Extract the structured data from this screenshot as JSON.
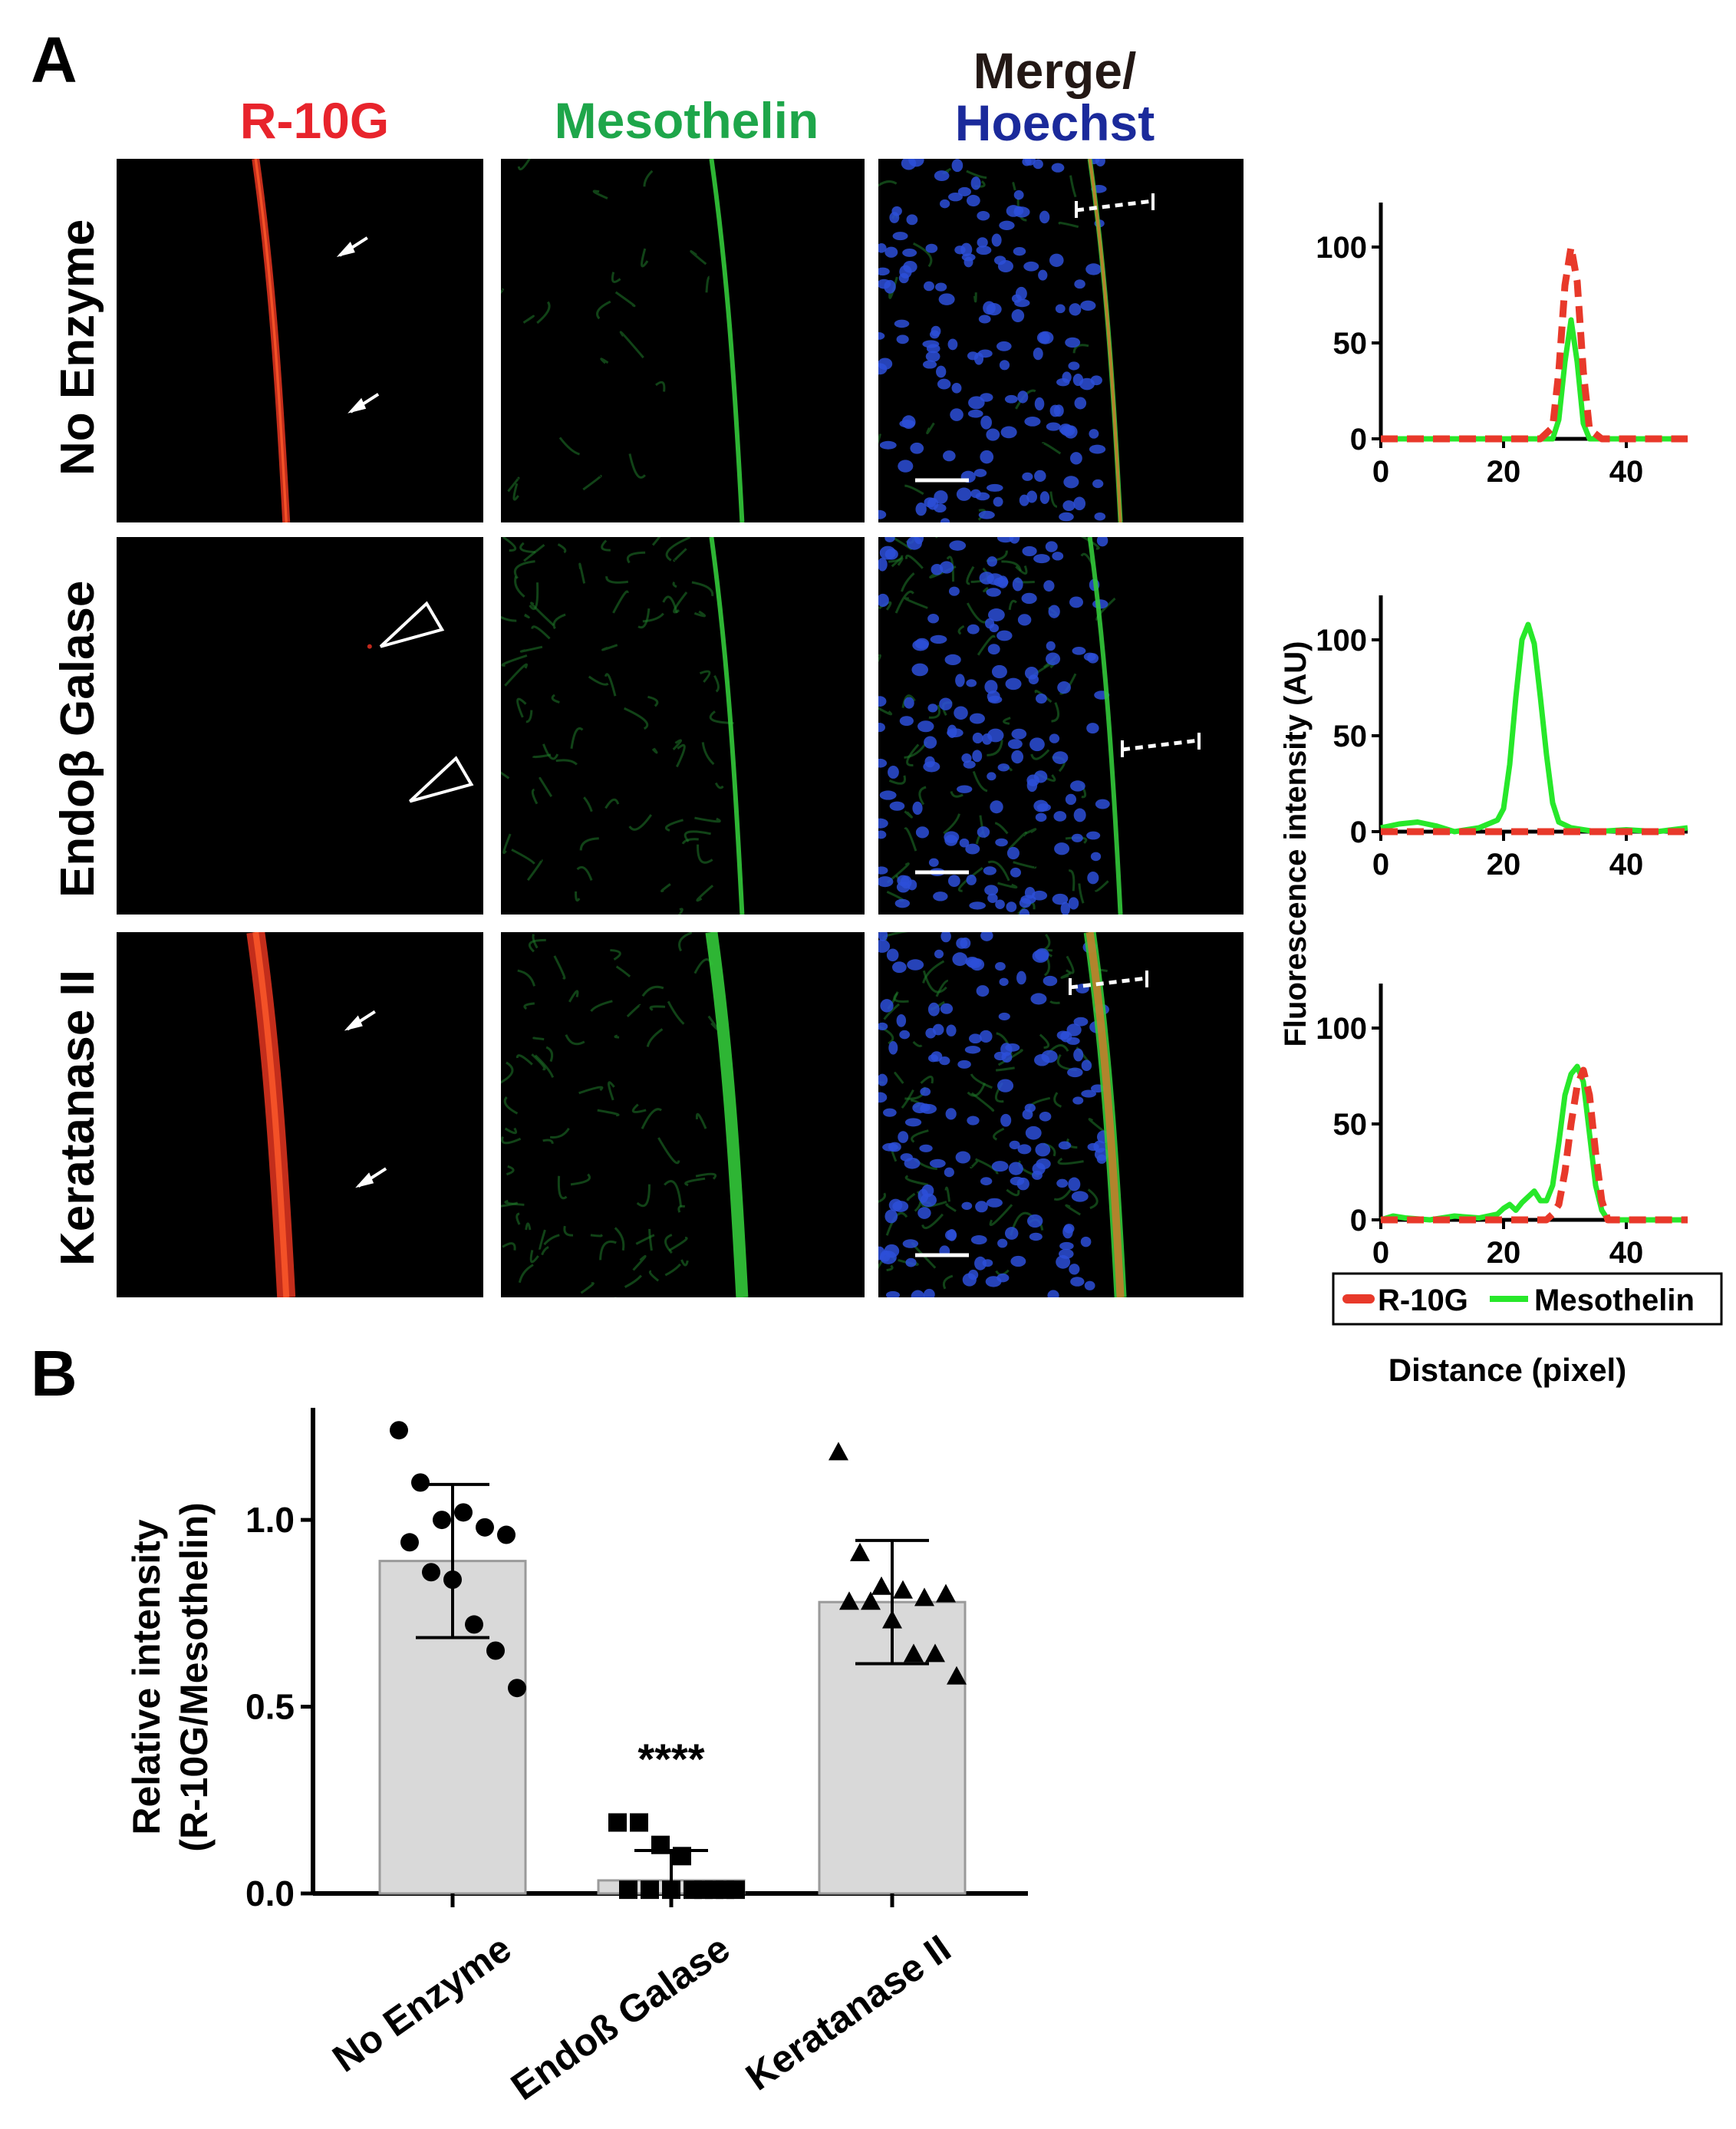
{
  "panel_a_label": "A",
  "panel_b_label": "B",
  "columns": {
    "r10g": "R-10G",
    "mesothelin": "Mesothelin",
    "merge_line1": "Merge/",
    "merge_line2": "Hoechst"
  },
  "rows": [
    "No Enzyme",
    "Endoβ Galase",
    "Keratanase II"
  ],
  "colors": {
    "red_label": "#e8242c",
    "green_label": "#1ea64a",
    "blue_label": "#1b2a9b",
    "r10g_line": "#e8392a",
    "mesothelin_line": "#27e82a",
    "bar_fill": "#d9d9d9"
  },
  "icons": [
    "arrow-icon",
    "open-arrowhead-icon",
    "scale-bar",
    "line-profile-marker"
  ],
  "profile_ylabel": "Fluorescence intensity (AU)",
  "profile_xlabel": "Distance (pixel)",
  "legend": {
    "r10g": "R-10G",
    "mesothelin": "Mesothelin"
  },
  "chart_data": [
    {
      "type": "line",
      "panel": "No Enzyme",
      "xlim": [
        0,
        50
      ],
      "ylim": [
        0,
        120
      ],
      "xticks": [
        0,
        20,
        40
      ],
      "yticks": [
        0,
        50,
        100
      ],
      "series": [
        {
          "name": "R-10G",
          "x": [
            0,
            26,
            28,
            29,
            30,
            31,
            32,
            33,
            34,
            36,
            50
          ],
          "y": [
            0,
            0,
            6,
            35,
            80,
            100,
            82,
            35,
            5,
            0,
            0
          ]
        },
        {
          "name": "Mesothelin",
          "x": [
            0,
            28,
            29,
            30,
            31,
            32,
            33,
            34,
            50
          ],
          "y": [
            0,
            0,
            10,
            40,
            62,
            40,
            8,
            0,
            0
          ]
        }
      ]
    },
    {
      "type": "line",
      "panel": "Endoβ Galase",
      "xlim": [
        0,
        50
      ],
      "ylim": [
        0,
        120
      ],
      "xticks": [
        0,
        20,
        40
      ],
      "yticks": [
        0,
        50,
        100
      ],
      "series": [
        {
          "name": "R-10G",
          "x": [
            0,
            50
          ],
          "y": [
            0,
            0
          ]
        },
        {
          "name": "Mesothelin",
          "x": [
            0,
            3,
            6,
            9,
            12,
            16,
            19,
            20,
            21,
            22,
            23,
            24,
            25,
            26,
            27,
            28,
            29,
            31,
            35,
            40,
            45,
            50
          ],
          "y": [
            2,
            4,
            5,
            3,
            0,
            2,
            6,
            12,
            35,
            70,
            100,
            108,
            98,
            70,
            40,
            15,
            5,
            2,
            0,
            1,
            0,
            2
          ]
        }
      ]
    },
    {
      "type": "line",
      "panel": "Keratanase II",
      "xlim": [
        0,
        50
      ],
      "ylim": [
        0,
        120
      ],
      "xticks": [
        0,
        20,
        40
      ],
      "yticks": [
        0,
        50,
        100
      ],
      "series": [
        {
          "name": "R-10G",
          "x": [
            0,
            27,
            28,
            29,
            30,
            31,
            32,
            33,
            34,
            35,
            36,
            37,
            50
          ],
          "y": [
            0,
            0,
            3,
            8,
            25,
            50,
            70,
            78,
            65,
            35,
            10,
            0,
            0
          ]
        },
        {
          "name": "Mesothelin",
          "x": [
            0,
            2,
            4,
            8,
            12,
            16,
            19,
            20,
            21,
            22,
            23,
            24,
            25,
            26,
            27,
            28,
            29,
            30,
            31,
            32,
            33,
            34,
            35,
            36,
            37,
            50
          ],
          "y": [
            0,
            2,
            1,
            0,
            2,
            1,
            3,
            6,
            8,
            5,
            9,
            12,
            15,
            10,
            10,
            18,
            40,
            65,
            76,
            80,
            72,
            45,
            18,
            5,
            0,
            0
          ]
        }
      ]
    },
    {
      "type": "bar",
      "categories": [
        "No Enzyme",
        "Endoß Galase",
        "Keratanase II"
      ],
      "values": [
        0.89,
        0.035,
        0.78
      ],
      "error": [
        0.205,
        0.08,
        0.165
      ],
      "ylabel_line1": "Relative intensity",
      "ylabel_line2": "(R-10G/Mesothelin)",
      "ylim": [
        0,
        1.3
      ],
      "yticks": [
        "0.0",
        "0.5",
        "1.0"
      ],
      "ytick_values": [
        0,
        0.5,
        1.0
      ],
      "significance": "****",
      "points": [
        {
          "marker": "circle",
          "values": [
            1.24,
            1.1,
            1.0,
            1.02,
            0.98,
            0.96,
            0.94,
            0.86,
            0.84,
            0.72,
            0.65,
            0.55
          ]
        },
        {
          "marker": "square",
          "values": [
            0.19,
            0.19,
            0.13,
            0.1,
            0.01,
            0.01,
            0.01,
            0.01,
            0.01,
            0.01,
            0.01,
            0.01
          ]
        },
        {
          "marker": "triangle",
          "values": [
            1.18,
            0.91,
            0.82,
            0.81,
            0.79,
            0.8,
            0.78,
            0.78,
            0.73,
            0.64,
            0.64,
            0.58
          ]
        }
      ]
    }
  ]
}
